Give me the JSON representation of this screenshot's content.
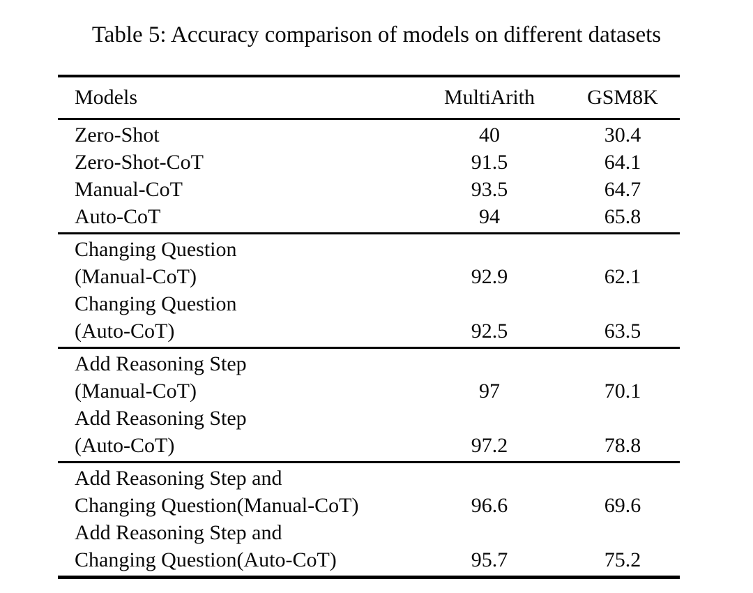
{
  "caption": "Table 5: Accuracy comparison of models on different datasets",
  "colors": {
    "text": "#0a0a0a",
    "background": "#ffffff",
    "rule": "#000000"
  },
  "table": {
    "headers": [
      "Models",
      "MultiArith",
      "GSM8K"
    ],
    "groups": [
      {
        "rows": [
          {
            "label_lines": [
              "Zero-Shot"
            ],
            "multiarith": "40",
            "gsm8k": "30.4"
          },
          {
            "label_lines": [
              "Zero-Shot-CoT"
            ],
            "multiarith": "91.5",
            "gsm8k": "64.1"
          },
          {
            "label_lines": [
              "Manual-CoT"
            ],
            "multiarith": "93.5",
            "gsm8k": "64.7"
          },
          {
            "label_lines": [
              "Auto-CoT"
            ],
            "multiarith": "94",
            "gsm8k": "65.8"
          }
        ]
      },
      {
        "rows": [
          {
            "label_lines": [
              "Changing Question",
              "(Manual-CoT)"
            ],
            "multiarith": "92.9",
            "gsm8k": "62.1"
          },
          {
            "label_lines": [
              "Changing Question",
              "(Auto-CoT)"
            ],
            "multiarith": "92.5",
            "gsm8k": "63.5"
          }
        ]
      },
      {
        "rows": [
          {
            "label_lines": [
              "Add Reasoning Step",
              "(Manual-CoT)"
            ],
            "multiarith": "97",
            "gsm8k": "70.1"
          },
          {
            "label_lines": [
              "Add Reasoning Step",
              "(Auto-CoT)"
            ],
            "multiarith": "97.2",
            "gsm8k": "78.8"
          }
        ]
      },
      {
        "rows": [
          {
            "label_lines": [
              "Add Reasoning Step and",
              "Changing Question(Manual-CoT)"
            ],
            "multiarith": "96.6",
            "gsm8k": "69.6"
          },
          {
            "label_lines": [
              "Add Reasoning Step and",
              "Changing Question(Auto-CoT)"
            ],
            "multiarith": "95.7",
            "gsm8k": "75.2"
          }
        ]
      }
    ]
  },
  "chart_data": {
    "type": "table",
    "title": "Table 5: Accuracy comparison of models on different datasets",
    "columns": [
      "Models",
      "MultiArith",
      "GSM8K"
    ],
    "rows": [
      [
        "Zero-Shot",
        40,
        30.4
      ],
      [
        "Zero-Shot-CoT",
        91.5,
        64.1
      ],
      [
        "Manual-CoT",
        93.5,
        64.7
      ],
      [
        "Auto-CoT",
        94,
        65.8
      ],
      [
        "Changing Question (Manual-CoT)",
        92.9,
        62.1
      ],
      [
        "Changing Question (Auto-CoT)",
        92.5,
        63.5
      ],
      [
        "Add Reasoning Step (Manual-CoT)",
        97,
        70.1
      ],
      [
        "Add Reasoning Step (Auto-CoT)",
        97.2,
        78.8
      ],
      [
        "Add Reasoning Step and Changing Question(Manual-CoT)",
        96.6,
        69.6
      ],
      [
        "Add Reasoning Step and Changing Question(Auto-CoT)",
        95.7,
        75.2
      ]
    ]
  }
}
